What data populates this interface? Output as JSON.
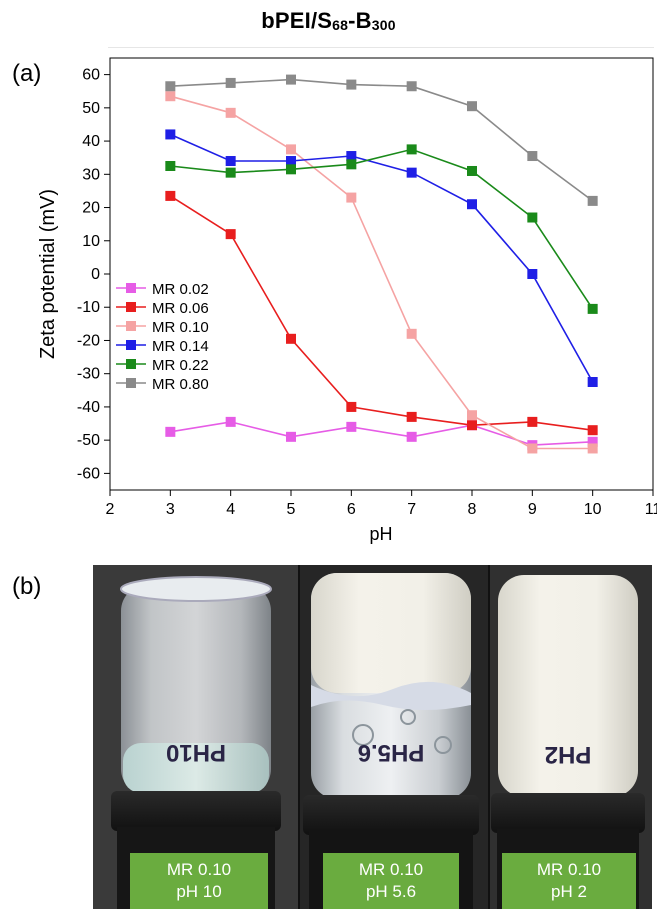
{
  "figure": {
    "title_main": "bPEI/S",
    "title_sub1": "68",
    "title_mid": "-B",
    "title_sub2": "300",
    "panel_a_label": "(a)",
    "panel_b_label": "(b)"
  },
  "chart_data": {
    "type": "line",
    "xlabel": "pH",
    "ylabel": "Zeta potential (mV)",
    "xlim": [
      2,
      11
    ],
    "ylim": [
      -65,
      65
    ],
    "xticks": [
      2,
      3,
      4,
      5,
      6,
      7,
      8,
      9,
      10,
      11
    ],
    "yticks": [
      -60,
      -50,
      -40,
      -30,
      -20,
      -10,
      0,
      10,
      20,
      30,
      40,
      50,
      60
    ],
    "grid": false,
    "legend_position": "left",
    "x": [
      3,
      4,
      5,
      6,
      7,
      8,
      9,
      10
    ],
    "series": [
      {
        "name": "MR 0.02",
        "color": "#e65ce6",
        "values": [
          -47.5,
          -44.5,
          -49,
          -46,
          -49,
          -45.5,
          -51.5,
          -50.5
        ]
      },
      {
        "name": "MR 0.06",
        "color": "#e81e1e",
        "values": [
          23.5,
          12,
          -19.5,
          -40,
          -43,
          -45.5,
          -44.5,
          -47
        ]
      },
      {
        "name": "MR 0.10",
        "color": "#f5a3a3",
        "values": [
          53.5,
          48.5,
          37.5,
          23,
          -18,
          -42.5,
          -52.5,
          -52.5
        ]
      },
      {
        "name": "MR 0.14",
        "color": "#1f1fe6",
        "values": [
          42,
          34,
          34,
          35.5,
          30.5,
          21,
          0,
          -32.5
        ]
      },
      {
        "name": "MR 0.22",
        "color": "#1a8a1a",
        "values": [
          32.5,
          30.5,
          31.5,
          33,
          37.5,
          31,
          17,
          -10.5
        ]
      },
      {
        "name": "MR 0.80",
        "color": "#8a8a8a",
        "values": [
          56.5,
          57.5,
          58.5,
          57,
          56.5,
          50.5,
          35.5,
          22
        ]
      }
    ]
  },
  "photos": [
    {
      "mr": "MR 0.10",
      "ph": "pH 10",
      "vial_text": "PH10"
    },
    {
      "mr": "MR 0.10",
      "ph": "pH 5.6",
      "vial_text": "PH5.6"
    },
    {
      "mr": "MR 0.10",
      "ph": "pH 2",
      "vial_text": "PH2"
    }
  ]
}
